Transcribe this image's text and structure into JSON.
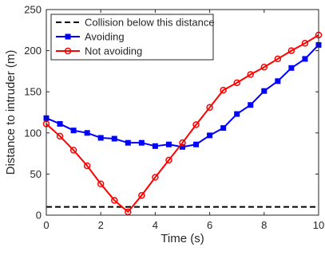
{
  "chart_data": {
    "type": "line",
    "title": "",
    "xlabel": "Time (s)",
    "ylabel": "Distance to intruder (m)",
    "xlim": [
      0,
      10
    ],
    "ylim": [
      0,
      250
    ],
    "x_ticks": [
      "0",
      "2",
      "4",
      "6",
      "8",
      "10"
    ],
    "y_ticks": [
      "0",
      "50",
      "100",
      "150",
      "200",
      "250"
    ],
    "grid": false,
    "legend_position": "top-left",
    "threshold": {
      "name": "Collision below this distance",
      "y": 10,
      "color": "#000000"
    },
    "series": [
      {
        "name": "Avoiding",
        "color": "#0000ff",
        "marker": "square",
        "x": [
          0,
          0.5,
          1,
          1.5,
          2,
          2.5,
          3,
          3.5,
          4,
          4.5,
          5,
          5.5,
          6,
          6.5,
          7,
          7.5,
          8,
          8.5,
          9,
          9.5,
          10
        ],
        "values": [
          118,
          111,
          103,
          100,
          94,
          93,
          88,
          88,
          84,
          86,
          83,
          86,
          97,
          106,
          123,
          134,
          151,
          163,
          179,
          190,
          207
        ]
      },
      {
        "name": "Not avoiding",
        "color": "#ff0000",
        "marker": "circle",
        "x": [
          0,
          0.5,
          1,
          1.5,
          2,
          2.5,
          3,
          3.5,
          4,
          4.5,
          5,
          5.5,
          6,
          6.5,
          7,
          7.5,
          8,
          8.5,
          9,
          9.5,
          10
        ],
        "values": [
          111,
          96,
          79,
          60,
          38,
          18,
          4,
          24,
          46,
          67,
          88,
          110,
          131,
          152,
          161,
          171,
          180,
          190,
          200,
          209,
          219
        ]
      }
    ]
  }
}
